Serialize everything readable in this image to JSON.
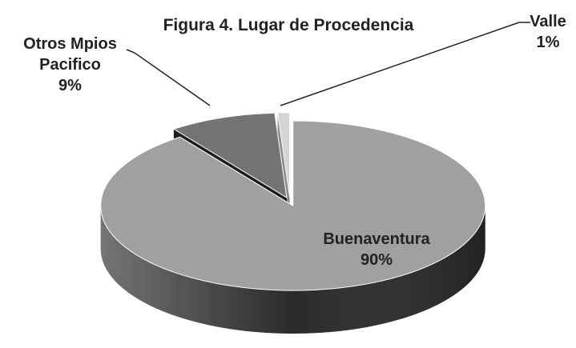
{
  "chart_data": {
    "type": "pie",
    "title": "Figura 4. Lugar de Procedencia",
    "categories": [
      "Buenaventura",
      "Otros Mpios Pacifico",
      "Valle"
    ],
    "values": [
      90,
      9,
      1
    ],
    "value_labels": [
      "90%",
      "9%",
      "1%"
    ],
    "colors": [
      "#a0a0a0",
      "#747474",
      "#d4d4d4"
    ],
    "side_colors": [
      "#2a2a2a",
      "#1c1c1c",
      "#8a8a8a"
    ]
  }
}
